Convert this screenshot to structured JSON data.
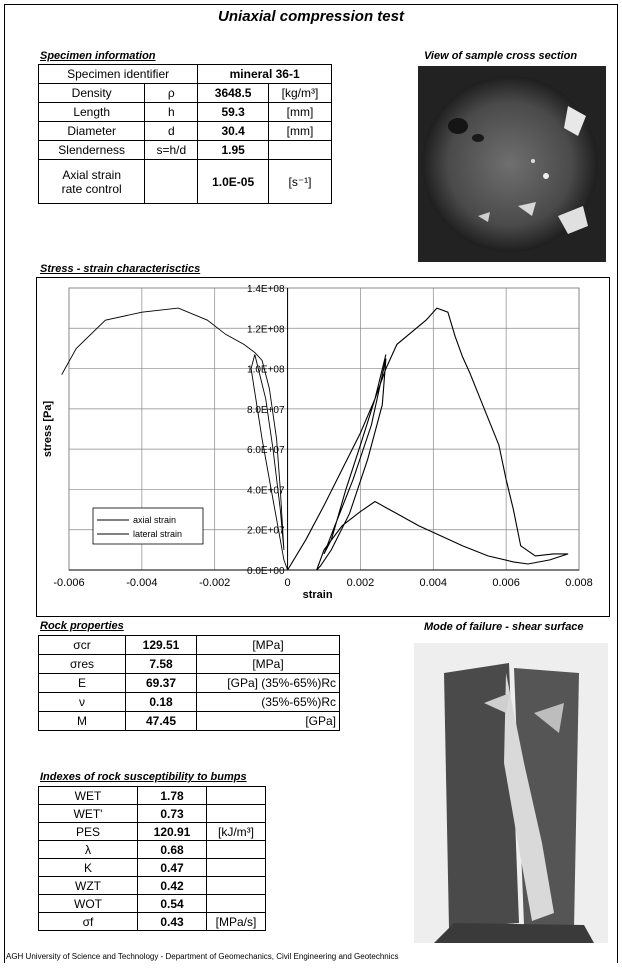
{
  "title": "Uniaxial  compression test",
  "specimen": {
    "heading": "Specimen information",
    "id_label": "Specimen identifier",
    "id_value": "mineral 36-1",
    "rows": [
      {
        "name": "Density",
        "sym": "ρ",
        "val": "3648.5",
        "unit": "[kg/m³]"
      },
      {
        "name": "Length",
        "sym": "h",
        "val": "59.3",
        "unit": "[mm]"
      },
      {
        "name": "Diameter",
        "sym": "d",
        "val": "30.4",
        "unit": "[mm]"
      },
      {
        "name": "Slenderness",
        "sym": "s=h/d",
        "val": "1.95",
        "unit": ""
      }
    ],
    "rate_label_1": "Axial strain",
    "rate_label_2": "rate control",
    "rate_value": "1.0E-05",
    "rate_unit": "[s⁻¹]"
  },
  "cross_section_caption": "View of sample cross section",
  "chart_caption": "Stress - strain characterisctics",
  "chart_data": {
    "type": "line",
    "xlabel": "strain",
    "ylabel": "stress [Pa]",
    "xlim": [
      -0.006,
      0.008
    ],
    "ylim": [
      0,
      140000000
    ],
    "x_ticks": [
      "-0.006",
      "-0.004",
      "-0.002",
      "0",
      "0.002",
      "0.004",
      "0.006",
      "0.008"
    ],
    "y_ticks": [
      "0.0E+00",
      "2.0E+07",
      "4.0E+07",
      "6.0E+07",
      "8.0E+07",
      "1.0E+08",
      "1.2E+08",
      "1.4E+08"
    ],
    "grid": true,
    "legend_position": "bottom-left",
    "series": [
      {
        "name": "axial strain",
        "color": "#000000",
        "x": [
          0,
          0.0005,
          0.001,
          0.0015,
          0.002,
          0.0024,
          0.0027,
          0.003,
          0.0034,
          0.0038,
          0.0041,
          0.0044,
          0.0046,
          0.0048,
          0.005,
          0.0054,
          0.0058,
          0.006,
          0.0062,
          0.0064,
          0.0068,
          0.0073,
          0.0077,
          0.0072,
          0.0066,
          0.0062,
          0.0055,
          0.0048,
          0.0042,
          0.0036,
          0.003,
          0.0027,
          0.0024,
          0.002,
          0.0015,
          0.001,
          0.0008,
          0.0009,
          0.0012,
          0.0017,
          0.0022,
          0.0026,
          0.0027,
          0.0023,
          0.0018,
          0.0013,
          0.001,
          0.0012,
          0.0016,
          0.002,
          0.0024,
          0.0027
        ],
        "y": [
          0,
          15000000,
          32000000,
          50000000,
          68000000,
          85000000,
          100000000,
          112000000,
          118000000,
          124000000,
          130000000,
          128000000,
          116000000,
          106000000,
          98000000,
          80000000,
          62000000,
          45000000,
          30000000,
          12000000,
          7000000,
          8000000,
          8000000,
          5000000,
          3000000,
          4000000,
          7000000,
          12000000,
          17000000,
          22000000,
          28000000,
          31000000,
          34000000,
          29000000,
          22000000,
          10000000,
          0,
          2000000,
          10000000,
          28000000,
          55000000,
          82000000,
          105000000,
          72000000,
          45000000,
          22000000,
          8000000,
          15000000,
          40000000,
          62000000,
          85000000,
          107000000
        ]
      },
      {
        "name": "lateral strain",
        "color": "#000000",
        "x": [
          -0.0062,
          -0.0058,
          -0.005,
          -0.004,
          -0.003,
          -0.0022,
          -0.0017,
          -0.0012,
          -0.0009,
          -0.0007,
          -0.0005,
          -0.0003,
          -0.0002,
          -0.0001,
          -0.0002,
          -0.0004,
          -0.0006,
          -0.0009,
          -0.001,
          -0.0007,
          -0.0004,
          -0.0002,
          -0.0001,
          0.0
        ],
        "y": [
          97000000,
          110000000,
          124000000,
          128000000,
          130000000,
          124000000,
          117000000,
          112000000,
          108000000,
          104000000,
          90000000,
          65000000,
          40000000,
          10000000,
          30000000,
          60000000,
          85000000,
          107000000,
          100000000,
          65000000,
          35000000,
          15000000,
          5000000,
          0
        ]
      }
    ]
  },
  "rock": {
    "heading": "Rock properties",
    "rows": [
      {
        "sym": "σcr",
        "val": "129.51",
        "unit": "[MPa]"
      },
      {
        "sym": "σres",
        "val": "7.58",
        "unit": "[MPa]"
      },
      {
        "sym": "E",
        "val": "69.37",
        "unit": "[GPa] (35%-65%)Rc"
      },
      {
        "sym": "ν",
        "val": "0.18",
        "unit": "(35%-65%)Rc"
      },
      {
        "sym": "M",
        "val": "47.45",
        "unit": "[GPa]"
      }
    ]
  },
  "failure_caption": "Mode of failure -  shear surface",
  "bumps": {
    "heading": "Indexes of rock susceptibility to bumps",
    "rows": [
      {
        "name": "WET",
        "val": "1.78",
        "unit": ""
      },
      {
        "name": "WET'",
        "val": "0.73",
        "unit": ""
      },
      {
        "name": "PES",
        "val": "120.91",
        "unit": "[kJ/m³]"
      },
      {
        "name": "λ",
        "val": "0.68",
        "unit": ""
      },
      {
        "name": "K",
        "val": "0.47",
        "unit": ""
      },
      {
        "name": "WZT",
        "val": "0.42",
        "unit": ""
      },
      {
        "name": "WOT",
        "val": "0.54",
        "unit": ""
      },
      {
        "name": "σf",
        "val": "0.43",
        "unit": "[MPa/s]"
      }
    ]
  },
  "footer": "AGH University of Science and Technology - Department of Geomechanics, Civil Engineering and Geotechnics"
}
